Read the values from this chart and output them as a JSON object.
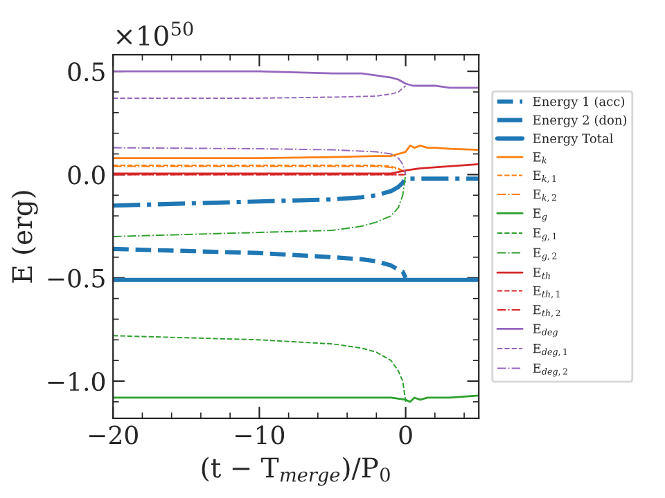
{
  "chart_data": {
    "type": "line",
    "xlabel": "(t − T$_{merge}$)/P$_{0}$",
    "ylabel": "E (erg)",
    "annotations": [
      "×10$^{50}$"
    ],
    "xlim": [
      -20,
      5
    ],
    "ylim": [
      -1.18,
      0.58
    ],
    "xticks": [
      {
        "value": -20,
        "label": "−20"
      },
      {
        "value": -10,
        "label": "−10"
      },
      0
    ],
    "yticks": [
      {
        "value": -1.0,
        "label": "−1.0"
      },
      {
        "value": -0.5,
        "label": "−0.5"
      },
      {
        "value": 0.0,
        "label": "0.0"
      },
      0.5
    ],
    "grid": false,
    "legend": "right",
    "series": [
      {
        "name": "Energy 1 (acc)",
        "color": "#1f77b4",
        "line_style": "dashed",
        "x": [
          -20,
          -15,
          -10,
          -5,
          -3,
          -2,
          -1,
          -0.5,
          -0.2,
          0
        ],
        "values": [
          -0.36,
          -0.37,
          -0.38,
          -0.4,
          -0.41,
          -0.42,
          -0.44,
          -0.46,
          -0.47,
          -0.5
        ]
      },
      {
        "name": "Energy 2 (don)",
        "color": "#1f77b4",
        "line_style": "dashdot",
        "x": [
          -20,
          -15,
          -10,
          -5,
          -3,
          -2,
          -1,
          -0.5,
          -0.2,
          0,
          0.2,
          1,
          3,
          5
        ],
        "values": [
          -0.15,
          -0.14,
          -0.13,
          -0.12,
          -0.11,
          -0.1,
          -0.08,
          -0.06,
          -0.04,
          -0.02,
          -0.02,
          -0.02,
          -0.02,
          -0.02
        ]
      },
      {
        "name": "Energy Total",
        "color": "#1f77b4",
        "line_style": "solid",
        "x": [
          -20,
          -10,
          0,
          5
        ],
        "values": [
          -0.51,
          -0.51,
          -0.51,
          -0.51
        ]
      },
      {
        "name": "E$_{k}$",
        "color": "#ff7f0e",
        "line_style": "solid",
        "x": [
          -20,
          -10,
          -5,
          -2,
          -1,
          0,
          0.3,
          0.6,
          1,
          1.5,
          2,
          3,
          5
        ],
        "values": [
          0.08,
          0.08,
          0.085,
          0.09,
          0.09,
          0.11,
          0.14,
          0.13,
          0.14,
          0.13,
          0.13,
          0.125,
          0.12
        ]
      },
      {
        "name": "E$_{k,1}$",
        "color": "#ff7f0e",
        "line_style": "dashed",
        "x": [
          -20,
          -10,
          -5,
          -2,
          -1,
          -0.5,
          0
        ],
        "values": [
          0.045,
          0.045,
          0.045,
          0.045,
          0.04,
          0.03,
          0.01
        ]
      },
      {
        "name": "E$_{k,2}$",
        "color": "#ff7f0e",
        "line_style": "dashdot",
        "x": [
          -20,
          -10,
          -5,
          -2,
          -1,
          -0.5,
          0
        ],
        "values": [
          0.04,
          0.04,
          0.04,
          0.04,
          0.035,
          0.025,
          0.01
        ]
      },
      {
        "name": "E$_{g}$",
        "color": "#2ca02c",
        "line_style": "solid",
        "x": [
          -20,
          -10,
          -5,
          -1,
          0,
          0.3,
          0.6,
          1,
          1.5,
          2,
          3,
          5
        ],
        "values": [
          -1.08,
          -1.08,
          -1.08,
          -1.08,
          -1.09,
          -1.1,
          -1.08,
          -1.09,
          -1.08,
          -1.08,
          -1.08,
          -1.07
        ]
      },
      {
        "name": "E$_{g,1}$",
        "color": "#2ca02c",
        "line_style": "dashed",
        "x": [
          -20,
          -15,
          -10,
          -5,
          -3,
          -2,
          -1,
          -0.5,
          -0.2,
          0
        ],
        "values": [
          -0.78,
          -0.79,
          -0.8,
          -0.82,
          -0.84,
          -0.86,
          -0.9,
          -0.95,
          -1.0,
          -1.1
        ]
      },
      {
        "name": "E$_{g,2}$",
        "color": "#2ca02c",
        "line_style": "dashdot",
        "x": [
          -20,
          -15,
          -10,
          -5,
          -3,
          -2,
          -1,
          -0.5,
          -0.2,
          0
        ],
        "values": [
          -0.3,
          -0.29,
          -0.28,
          -0.27,
          -0.25,
          -0.23,
          -0.2,
          -0.16,
          -0.1,
          0.0
        ]
      },
      {
        "name": "E$_{th}$",
        "color": "#d62728",
        "line_style": "solid",
        "x": [
          -20,
          -10,
          -2,
          -1,
          0,
          1,
          3,
          5
        ],
        "values": [
          0.005,
          0.005,
          0.005,
          0.005,
          0.02,
          0.03,
          0.04,
          0.05
        ]
      },
      {
        "name": "E$_{th,1}$",
        "color": "#d62728",
        "line_style": "dashed",
        "x": [
          -20,
          -10,
          -2,
          0
        ],
        "values": [
          0.0,
          0.0,
          0.0,
          0.0
        ]
      },
      {
        "name": "E$_{th,2}$",
        "color": "#d62728",
        "line_style": "dashdot",
        "x": [
          -20,
          -10,
          -2,
          0
        ],
        "values": [
          0.0,
          0.0,
          0.0,
          0.0
        ]
      },
      {
        "name": "E$_{deg}$",
        "color": "#9467bd",
        "line_style": "solid",
        "x": [
          -20,
          -10,
          -5,
          -3,
          -2,
          -1,
          -0.5,
          0,
          0.5,
          1,
          2,
          3,
          5
        ],
        "values": [
          0.5,
          0.5,
          0.49,
          0.49,
          0.48,
          0.47,
          0.46,
          0.44,
          0.43,
          0.43,
          0.43,
          0.42,
          0.42
        ]
      },
      {
        "name": "E$_{deg,1}$",
        "color": "#9467bd",
        "line_style": "dashed",
        "x": [
          -20,
          -10,
          -5,
          -2,
          -1,
          -0.5,
          0
        ],
        "values": [
          0.37,
          0.37,
          0.375,
          0.38,
          0.39,
          0.4,
          0.43
        ]
      },
      {
        "name": "E$_{deg,2}$",
        "color": "#9467bd",
        "line_style": "dashdot",
        "x": [
          -20,
          -10,
          -5,
          -2,
          -1,
          -0.5,
          -0.2,
          0
        ],
        "values": [
          0.13,
          0.125,
          0.12,
          0.11,
          0.1,
          0.08,
          0.05,
          0.0
        ]
      }
    ]
  }
}
